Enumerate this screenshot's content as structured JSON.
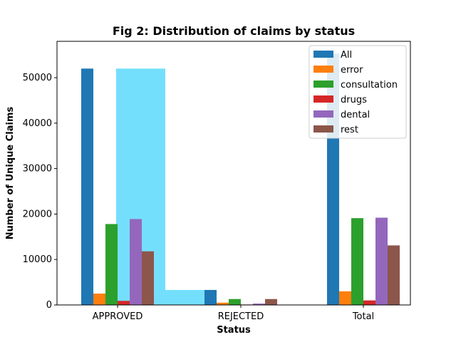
{
  "chart_data": {
    "type": "bar",
    "title": "Fig 2: Distribution of claims by status",
    "xlabel": "Status",
    "ylabel": "Number of Unique Claims",
    "categories": [
      "APPROVED",
      "REJECTED",
      "Total"
    ],
    "ylim": [
      0,
      58000
    ],
    "yticks": [
      0,
      10000,
      20000,
      30000,
      40000,
      50000
    ],
    "ytick_labels": [
      "0",
      "10000",
      "20000",
      "30000",
      "40000",
      "50000"
    ],
    "grid": false,
    "legend_position": "top-right",
    "series": [
      {
        "name": "All",
        "color": "#1f77b4",
        "values": [
          52000,
          3300,
          55300
        ]
      },
      {
        "name": "error",
        "color": "#ff7f0e",
        "values": [
          2500,
          500,
          3000
        ]
      },
      {
        "name": "consultation",
        "color": "#2ca02c",
        "values": [
          17800,
          1300,
          19100
        ]
      },
      {
        "name": "drugs",
        "color": "#d62728",
        "values": [
          900,
          100,
          1000
        ]
      },
      {
        "name": "dental",
        "color": "#9467bd",
        "values": [
          18900,
          300,
          19200
        ]
      },
      {
        "name": "rest",
        "color": "#8c564b",
        "values": [
          11800,
          1300,
          13100
        ]
      }
    ],
    "overlay_bars": {
      "color": "#74dffc",
      "values": [
        52000,
        3300,
        55300
      ]
    }
  }
}
